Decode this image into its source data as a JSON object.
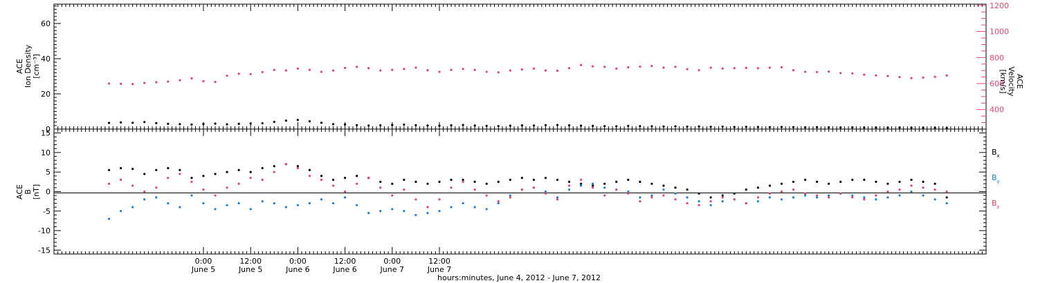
{
  "chart_data": [
    {
      "type": "scatter",
      "panel": "top",
      "ylabel_left_lines": [
        "ACE",
        "Ion Density",
        "[cm⁻³]"
      ],
      "ylabel_right_lines": [
        "ACE",
        "Velocity",
        "[km/s]"
      ],
      "ylim_left": [
        0,
        71
      ],
      "ylim_right": [
        250,
        1210
      ],
      "yticks_left": [
        0,
        20,
        40,
        60
      ],
      "yticks_right": [
        400,
        600,
        800,
        1000,
        1200
      ],
      "colors": {
        "density": "#000000",
        "velocity": "#e8416a"
      },
      "series": [
        {
          "key": "density",
          "axis": "left",
          "color": "#000000",
          "x_hours": [
            0,
            3,
            6,
            9,
            12,
            15,
            18,
            21,
            24,
            27,
            30,
            33,
            36,
            39,
            42,
            45,
            48,
            51,
            54,
            57,
            60,
            63,
            66,
            69,
            72,
            75,
            78,
            81,
            84,
            87,
            90,
            93,
            96,
            99,
            102,
            105,
            108,
            111,
            114,
            117,
            120,
            123,
            126,
            129,
            132,
            135,
            138,
            141,
            144,
            147,
            150,
            153,
            156,
            159,
            162,
            165,
            168,
            171,
            174,
            177,
            180,
            183,
            186,
            189,
            192,
            195,
            198,
            201,
            204,
            207,
            210,
            213
          ],
          "values": [
            3.5,
            3.8,
            3.6,
            4.0,
            3.4,
            3.0,
            2.8,
            2.6,
            2.9,
            3.1,
            2.7,
            3.0,
            3.2,
            3.3,
            4.1,
            4.8,
            5.2,
            4.4,
            3.6,
            2.8,
            2.6,
            2.2,
            2.0,
            2.1,
            2.3,
            2.5,
            2.2,
            2.0,
            1.9,
            2.1,
            2.3,
            2.0,
            1.8,
            1.7,
            1.9,
            2.1,
            2.0,
            2.2,
            2.3,
            2.1,
            1.9,
            1.8,
            1.7,
            1.6,
            1.8,
            1.7,
            1.6,
            1.5,
            1.6,
            1.4,
            1.5,
            1.3,
            1.4,
            1.2,
            1.3,
            1.2,
            1.1,
            1.2,
            1.1,
            1.0,
            1.1,
            1.0,
            0.9,
            1.0,
            0.9,
            0.9,
            0.8,
            0.9,
            0.8,
            0.8,
            0.8,
            0.7
          ]
        },
        {
          "key": "velocity",
          "axis": "right",
          "color": "#e8416a",
          "x_hours": [
            0,
            3,
            6,
            9,
            12,
            15,
            18,
            21,
            24,
            27,
            30,
            33,
            36,
            39,
            42,
            45,
            48,
            51,
            54,
            57,
            60,
            63,
            66,
            69,
            72,
            75,
            78,
            81,
            84,
            87,
            90,
            93,
            96,
            99,
            102,
            105,
            108,
            111,
            114,
            117,
            120,
            123,
            126,
            129,
            132,
            135,
            138,
            141,
            144,
            147,
            150,
            153,
            156,
            159,
            162,
            165,
            168,
            171,
            174,
            177,
            180,
            183,
            186,
            189,
            192,
            195,
            198,
            201,
            204,
            207,
            210,
            213
          ],
          "values": [
            600,
            598,
            596,
            604,
            610,
            615,
            625,
            640,
            618,
            612,
            660,
            675,
            672,
            688,
            705,
            700,
            715,
            705,
            690,
            700,
            720,
            728,
            718,
            700,
            705,
            712,
            722,
            702,
            690,
            705,
            712,
            705,
            690,
            686,
            700,
            708,
            715,
            700,
            698,
            718,
            742,
            732,
            728,
            715,
            725,
            730,
            735,
            722,
            728,
            710,
            702,
            722,
            715,
            718,
            720,
            718,
            722,
            725,
            702,
            690,
            688,
            692,
            680,
            678,
            668,
            662,
            658,
            650,
            642,
            646,
            652,
            662
          ]
        }
      ]
    },
    {
      "type": "scatter",
      "panel": "bottom",
      "ylabel_lines": [
        "ACE",
        "B",
        "[nT]"
      ],
      "ylim": [
        -16,
        16
      ],
      "yticks": [
        -15,
        -10,
        -5,
        0,
        5,
        10,
        15
      ],
      "legend_placement": "right",
      "colors": {
        "bx": "#000000",
        "by": "#1a7fe0",
        "bz": "#e8416a"
      },
      "series": [
        {
          "key": "bx",
          "name_base": "B",
          "name_sub": "x",
          "color": "#000000",
          "x_hours": [
            0,
            3,
            6,
            9,
            12,
            15,
            18,
            21,
            24,
            27,
            30,
            33,
            36,
            39,
            42,
            45,
            48,
            51,
            54,
            57,
            60,
            63,
            66,
            69,
            72,
            75,
            78,
            81,
            84,
            87,
            90,
            93,
            96,
            99,
            102,
            105,
            108,
            111,
            114,
            117,
            120,
            123,
            126,
            129,
            132,
            135,
            138,
            141,
            144,
            147,
            150,
            153,
            156,
            159,
            162,
            165,
            168,
            171,
            174,
            177,
            180,
            183,
            186,
            189,
            192,
            195,
            198,
            201,
            204,
            207,
            210,
            213
          ],
          "values": [
            5.5,
            6.0,
            5.8,
            4.5,
            5.5,
            6.0,
            5.5,
            3.5,
            4.0,
            4.5,
            5.0,
            5.5,
            5.0,
            6.0,
            6.5,
            7.0,
            6.5,
            5.5,
            4.0,
            3.0,
            3.5,
            4.0,
            3.5,
            2.5,
            2.0,
            3.0,
            2.5,
            2.0,
            2.5,
            3.0,
            3.0,
            2.5,
            2.0,
            2.5,
            3.0,
            3.5,
            3.0,
            3.5,
            3.0,
            2.5,
            2.0,
            1.5,
            2.0,
            2.5,
            3.0,
            2.5,
            2.0,
            1.5,
            1.0,
            0.5,
            -0.5,
            -1.5,
            -1.0,
            -0.5,
            0.5,
            1.0,
            1.5,
            2.0,
            2.5,
            3.0,
            2.5,
            2.0,
            2.5,
            3.0,
            3.0,
            2.5,
            2.0,
            2.5,
            3.0,
            2.5,
            2.0,
            -1.5
          ]
        },
        {
          "key": "by",
          "name_base": "B",
          "name_sub": "y",
          "color": "#1a7fe0",
          "x_hours": [
            0,
            3,
            6,
            9,
            12,
            15,
            18,
            21,
            24,
            27,
            30,
            33,
            36,
            39,
            42,
            45,
            48,
            51,
            54,
            57,
            60,
            63,
            66,
            69,
            72,
            75,
            78,
            81,
            84,
            87,
            90,
            93,
            96,
            99,
            102,
            105,
            108,
            111,
            114,
            117,
            120,
            123,
            126,
            129,
            132,
            135,
            138,
            141,
            144,
            147,
            150,
            153,
            156,
            159,
            162,
            165,
            168,
            171,
            174,
            177,
            180,
            183,
            186,
            189,
            192,
            195,
            198,
            201,
            204,
            207,
            210,
            213
          ],
          "values": [
            -7.0,
            -5.0,
            -4.0,
            -2.0,
            -1.5,
            -3.0,
            -4.0,
            -1.0,
            -3.0,
            -4.5,
            -3.5,
            -3.0,
            -4.5,
            -2.5,
            -3.0,
            -4.0,
            -3.5,
            -3.0,
            -2.0,
            -3.0,
            -1.5,
            -3.5,
            -5.5,
            -5.0,
            -4.5,
            -5.0,
            -6.0,
            -5.5,
            -5.0,
            -4.0,
            -3.0,
            -4.0,
            -4.5,
            -3.0,
            -1.0,
            0.5,
            1.0,
            0.0,
            -1.5,
            0.5,
            1.5,
            2.0,
            1.0,
            0.5,
            0.0,
            -1.5,
            -1.0,
            0.5,
            -0.5,
            -1.5,
            -2.5,
            -3.5,
            -2.5,
            -2.0,
            -3.0,
            -2.5,
            -1.5,
            -2.0,
            -1.5,
            -1.0,
            -1.5,
            -1.0,
            -0.5,
            -1.0,
            -1.5,
            -2.0,
            -1.5,
            -1.0,
            0.0,
            -1.0,
            -2.0,
            -3.0
          ]
        },
        {
          "key": "bz",
          "name_base": "B",
          "name_sub": "z",
          "color": "#e8416a",
          "x_hours": [
            0,
            3,
            6,
            9,
            12,
            15,
            18,
            21,
            24,
            27,
            30,
            33,
            36,
            39,
            42,
            45,
            48,
            51,
            54,
            57,
            60,
            63,
            66,
            69,
            72,
            75,
            78,
            81,
            84,
            87,
            90,
            93,
            96,
            99,
            102,
            105,
            108,
            111,
            114,
            117,
            120,
            123,
            126,
            129,
            132,
            135,
            138,
            141,
            144,
            147,
            150,
            153,
            156,
            159,
            162,
            165,
            168,
            171,
            174,
            177,
            180,
            183,
            186,
            189,
            192,
            195,
            198,
            201,
            204,
            207,
            210,
            213
          ],
          "values": [
            2.0,
            3.0,
            1.5,
            0.0,
            1.0,
            3.5,
            4.5,
            2.5,
            0.5,
            -1.0,
            1.0,
            2.0,
            3.5,
            3.0,
            5.0,
            7.0,
            6.0,
            4.0,
            3.0,
            1.5,
            0.0,
            2.0,
            3.5,
            1.0,
            -1.0,
            0.5,
            -2.0,
            -4.0,
            -2.0,
            1.0,
            2.5,
            0.5,
            -1.0,
            -2.5,
            -1.5,
            0.5,
            1.0,
            -0.5,
            -2.0,
            1.5,
            3.0,
            1.0,
            -1.0,
            0.5,
            -0.5,
            -2.5,
            -1.5,
            -1.0,
            -2.0,
            -3.0,
            -3.5,
            -2.5,
            -1.5,
            -2.0,
            -3.0,
            -1.5,
            -0.5,
            0.0,
            0.5,
            -0.5,
            -1.0,
            -1.5,
            -0.5,
            -1.5,
            -2.0,
            -1.0,
            0.0,
            0.5,
            1.5,
            1.0,
            0.5,
            0.0
          ]
        }
      ]
    }
  ],
  "x_axis": {
    "range_hours": [
      -14,
      223
    ],
    "tick_hours": [
      24,
      36,
      48,
      60,
      72,
      84
    ],
    "tick_time_labels": [
      "0:00",
      "12:00",
      "0:00",
      "12:00",
      "0:00",
      "12:00"
    ],
    "tick_date_labels": [
      "June 5",
      "June 5",
      "June 6",
      "June 6",
      "June 7",
      "June 7"
    ],
    "minor_tick_step_hours": 1,
    "title": "hours:minutes, June  4, 2012 - June  7, 2012"
  }
}
